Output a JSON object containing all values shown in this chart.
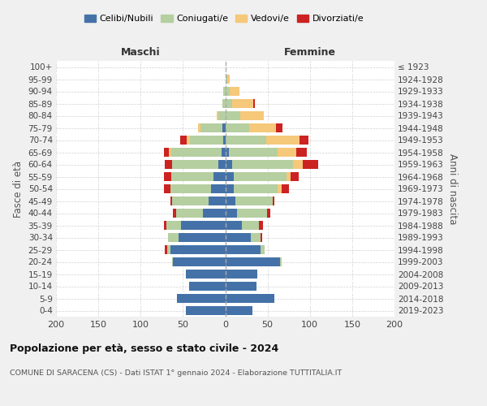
{
  "age_groups": [
    "0-4",
    "5-9",
    "10-14",
    "15-19",
    "20-24",
    "25-29",
    "30-34",
    "35-39",
    "40-44",
    "45-49",
    "50-54",
    "55-59",
    "60-64",
    "65-69",
    "70-74",
    "75-79",
    "80-84",
    "85-89",
    "90-94",
    "95-99",
    "100+"
  ],
  "birth_years": [
    "2019-2023",
    "2014-2018",
    "2009-2013",
    "2004-2008",
    "1999-2003",
    "1994-1998",
    "1989-1993",
    "1984-1988",
    "1979-1983",
    "1974-1978",
    "1969-1973",
    "1964-1968",
    "1959-1963",
    "1954-1958",
    "1949-1953",
    "1944-1948",
    "1939-1943",
    "1934-1938",
    "1929-1933",
    "1924-1928",
    "≤ 1923"
  ],
  "maschi": {
    "celibi": [
      47,
      57,
      43,
      47,
      62,
      65,
      55,
      52,
      26,
      20,
      17,
      14,
      8,
      4,
      2,
      3,
      0,
      0,
      0,
      0,
      0
    ],
    "coniugati": [
      0,
      0,
      0,
      0,
      1,
      4,
      13,
      18,
      32,
      43,
      48,
      50,
      55,
      60,
      40,
      26,
      8,
      3,
      2,
      0,
      0
    ],
    "vedovi": [
      0,
      0,
      0,
      0,
      0,
      0,
      0,
      0,
      0,
      0,
      0,
      0,
      0,
      3,
      4,
      3,
      2,
      0,
      0,
      0,
      0
    ],
    "divorziati": [
      0,
      0,
      0,
      0,
      0,
      2,
      0,
      2,
      4,
      2,
      7,
      8,
      8,
      5,
      7,
      0,
      0,
      0,
      0,
      0,
      0
    ]
  },
  "femmine": {
    "nubili": [
      32,
      58,
      37,
      38,
      65,
      42,
      30,
      20,
      14,
      12,
      10,
      10,
      8,
      4,
      0,
      0,
      0,
      0,
      0,
      0,
      0
    ],
    "coniugate": [
      0,
      0,
      0,
      0,
      2,
      5,
      12,
      20,
      35,
      44,
      52,
      62,
      72,
      58,
      48,
      28,
      18,
      8,
      5,
      2,
      0
    ],
    "vedove": [
      0,
      0,
      0,
      0,
      0,
      0,
      0,
      0,
      0,
      0,
      5,
      5,
      12,
      22,
      40,
      32,
      28,
      25,
      12,
      3,
      0
    ],
    "divorziate": [
      0,
      0,
      0,
      0,
      0,
      0,
      2,
      5,
      4,
      2,
      8,
      10,
      18,
      12,
      10,
      8,
      0,
      2,
      0,
      0,
      0
    ]
  },
  "colors": {
    "celibi": "#4472a8",
    "coniugati": "#b5cfa0",
    "vedovi": "#f5c87a",
    "divorziati": "#cc2222"
  },
  "title": "Popolazione per età, sesso e stato civile - 2024",
  "subtitle": "COMUNE DI SARACENA (CS) - Dati ISTAT 1° gennaio 2024 - Elaborazione TUTTITALIA.IT",
  "ylabel_left": "Fasce di età",
  "ylabel_right": "Anni di nascita",
  "xlabel_left": "Maschi",
  "xlabel_right": "Femmine",
  "xlim": 200,
  "bg_color": "#f0f0f0",
  "plot_bg": "#ffffff"
}
